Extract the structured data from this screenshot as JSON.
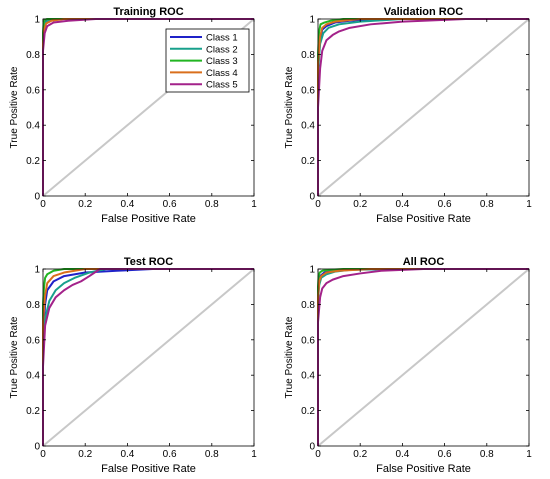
{
  "legend_entries": [
    "Class 1",
    "Class 2",
    "Class 3",
    "Class 4",
    "Class 5"
  ],
  "colors": {
    "class1": "#1f22c8",
    "class2": "#18a08c",
    "class3": "#22b522",
    "class4": "#d96f1c",
    "class5": "#a3228a",
    "diagonal": "#c8c8c8",
    "axis": "#000000"
  },
  "chart_data": [
    {
      "type": "line",
      "title": "Training ROC",
      "xlabel": "False Positive Rate",
      "ylabel": "True Positive Rate",
      "xlim": [
        0,
        1
      ],
      "ylim": [
        0,
        1
      ],
      "xticks": [
        "0",
        "0.2",
        "0.4",
        "0.6",
        "0.8",
        "1"
      ],
      "yticks": [
        "0",
        "0.2",
        "0.4",
        "0.6",
        "0.8",
        "1"
      ],
      "legend": "top-right",
      "grid": false,
      "diagonal": true,
      "series": [
        {
          "name": "Class 1",
          "x": [
            0,
            0,
            0.004,
            0.01,
            0.02,
            0.05,
            1
          ],
          "y": [
            0,
            0.9,
            0.97,
            0.99,
            1.0,
            1.0,
            1.0
          ]
        },
        {
          "name": "Class 2",
          "x": [
            0,
            0,
            0.005,
            0.012,
            0.03,
            0.08,
            1
          ],
          "y": [
            0,
            0.88,
            0.95,
            0.98,
            0.995,
            1.0,
            1.0
          ]
        },
        {
          "name": "Class 3",
          "x": [
            0,
            0,
            0.003,
            0.008,
            0.02,
            1
          ],
          "y": [
            0,
            0.92,
            0.98,
            0.995,
            1.0,
            1.0
          ]
        },
        {
          "name": "Class 4",
          "x": [
            0,
            0,
            0.006,
            0.015,
            0.04,
            0.1,
            1
          ],
          "y": [
            0,
            0.86,
            0.94,
            0.975,
            0.99,
            1.0,
            1.0
          ]
        },
        {
          "name": "Class 5",
          "x": [
            0,
            0,
            0.008,
            0.02,
            0.05,
            0.12,
            0.25,
            1
          ],
          "y": [
            0,
            0.82,
            0.92,
            0.96,
            0.98,
            0.99,
            1.0,
            1.0
          ]
        }
      ]
    },
    {
      "type": "line",
      "title": "Validation ROC",
      "xlabel": "False Positive Rate",
      "ylabel": "True Positive Rate",
      "xlim": [
        0,
        1
      ],
      "ylim": [
        0,
        1
      ],
      "xticks": [
        "0",
        "0.2",
        "0.4",
        "0.6",
        "0.8",
        "1"
      ],
      "yticks": [
        "0",
        "0.2",
        "0.4",
        "0.6",
        "0.8",
        "1"
      ],
      "grid": false,
      "diagonal": true,
      "series": [
        {
          "name": "Class 1",
          "x": [
            0,
            0,
            0.01,
            0.02,
            0.04,
            0.08,
            0.15,
            0.3,
            1
          ],
          "y": [
            0,
            0.72,
            0.88,
            0.94,
            0.96,
            0.98,
            0.99,
            1.0,
            1.0
          ]
        },
        {
          "name": "Class 2",
          "x": [
            0,
            0,
            0.01,
            0.025,
            0.05,
            0.1,
            0.2,
            0.4,
            1
          ],
          "y": [
            0,
            0.7,
            0.86,
            0.92,
            0.95,
            0.97,
            0.985,
            1.0,
            1.0
          ]
        },
        {
          "name": "Class 3",
          "x": [
            0,
            0,
            0.005,
            0.012,
            0.03,
            0.06,
            0.12,
            1
          ],
          "y": [
            0,
            0.8,
            0.93,
            0.97,
            0.98,
            0.99,
            1.0,
            1.0
          ]
        },
        {
          "name": "Class 4",
          "x": [
            0,
            0,
            0.01,
            0.02,
            0.04,
            0.08,
            0.2,
            1
          ],
          "y": [
            0,
            0.75,
            0.9,
            0.95,
            0.97,
            0.985,
            1.0,
            1.0
          ]
        },
        {
          "name": "Class 5",
          "x": [
            0,
            0,
            0.01,
            0.02,
            0.04,
            0.07,
            0.1,
            0.15,
            0.25,
            0.4,
            0.7,
            1
          ],
          "y": [
            0,
            0.5,
            0.72,
            0.82,
            0.88,
            0.91,
            0.93,
            0.95,
            0.97,
            0.985,
            1.0,
            1.0
          ]
        }
      ]
    },
    {
      "type": "line",
      "title": "Test ROC",
      "xlabel": "False Positive Rate",
      "ylabel": "True Positive Rate",
      "xlim": [
        0,
        1
      ],
      "ylim": [
        0,
        1
      ],
      "xticks": [
        "0",
        "0.2",
        "0.4",
        "0.6",
        "0.8",
        "1"
      ],
      "yticks": [
        "0",
        "0.2",
        "0.4",
        "0.6",
        "0.8",
        "1"
      ],
      "grid": false,
      "diagonal": true,
      "series": [
        {
          "name": "Class 1",
          "x": [
            0,
            0,
            0.01,
            0.02,
            0.05,
            0.1,
            0.2,
            0.35,
            0.52,
            1
          ],
          "y": [
            0,
            0.6,
            0.8,
            0.88,
            0.93,
            0.96,
            0.98,
            0.99,
            1.0,
            1.0
          ]
        },
        {
          "name": "Class 2",
          "x": [
            0,
            0,
            0.01,
            0.03,
            0.06,
            0.1,
            0.15,
            0.22,
            0.3,
            1
          ],
          "y": [
            0,
            0.55,
            0.72,
            0.82,
            0.88,
            0.92,
            0.95,
            0.98,
            1.0,
            1.0
          ]
        },
        {
          "name": "Class 3",
          "x": [
            0,
            0,
            0.005,
            0.01,
            0.02,
            0.05,
            0.1,
            1
          ],
          "y": [
            0,
            0.8,
            0.9,
            0.95,
            0.97,
            0.99,
            1.0,
            1.0
          ]
        },
        {
          "name": "Class 4",
          "x": [
            0,
            0,
            0.01,
            0.02,
            0.05,
            0.1,
            0.2,
            1
          ],
          "y": [
            0,
            0.7,
            0.85,
            0.92,
            0.96,
            0.98,
            1.0,
            1.0
          ]
        },
        {
          "name": "Class 5",
          "x": [
            0,
            0,
            0.01,
            0.03,
            0.06,
            0.1,
            0.14,
            0.18,
            0.22,
            0.27,
            1
          ],
          "y": [
            0,
            0.45,
            0.68,
            0.78,
            0.84,
            0.88,
            0.91,
            0.93,
            0.96,
            1.0,
            1.0
          ]
        }
      ]
    },
    {
      "type": "line",
      "title": "All ROC",
      "xlabel": "False Positive Rate",
      "ylabel": "True Positive Rate",
      "xlim": [
        0,
        1
      ],
      "ylim": [
        0,
        1
      ],
      "xticks": [
        "0",
        "0.2",
        "0.4",
        "0.6",
        "0.8",
        "1"
      ],
      "yticks": [
        "0",
        "0.2",
        "0.4",
        "0.6",
        "0.8",
        "1"
      ],
      "grid": false,
      "diagonal": true,
      "series": [
        {
          "name": "Class 1",
          "x": [
            0,
            0,
            0.005,
            0.01,
            0.03,
            0.06,
            0.12,
            0.3,
            1
          ],
          "y": [
            0,
            0.85,
            0.93,
            0.96,
            0.98,
            0.99,
            0.995,
            1.0,
            1.0
          ]
        },
        {
          "name": "Class 2",
          "x": [
            0,
            0,
            0.006,
            0.015,
            0.04,
            0.08,
            0.15,
            0.35,
            1
          ],
          "y": [
            0,
            0.82,
            0.91,
            0.95,
            0.97,
            0.985,
            0.995,
            1.0,
            1.0
          ]
        },
        {
          "name": "Class 3",
          "x": [
            0,
            0,
            0.003,
            0.008,
            0.02,
            0.05,
            0.12,
            1
          ],
          "y": [
            0,
            0.9,
            0.96,
            0.98,
            0.99,
            0.995,
            1.0,
            1.0
          ]
        },
        {
          "name": "Class 4",
          "x": [
            0,
            0,
            0.006,
            0.015,
            0.04,
            0.1,
            0.25,
            1
          ],
          "y": [
            0,
            0.84,
            0.93,
            0.96,
            0.98,
            0.99,
            1.0,
            1.0
          ]
        },
        {
          "name": "Class 5",
          "x": [
            0,
            0,
            0.01,
            0.02,
            0.04,
            0.07,
            0.12,
            0.2,
            0.3,
            0.5,
            1
          ],
          "y": [
            0,
            0.7,
            0.84,
            0.89,
            0.92,
            0.94,
            0.96,
            0.975,
            0.99,
            1.0,
            1.0
          ]
        }
      ]
    }
  ]
}
